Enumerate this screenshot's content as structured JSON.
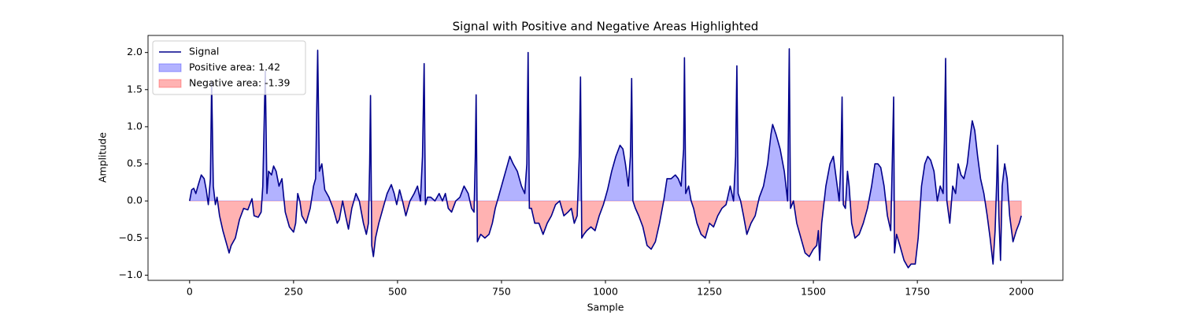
{
  "chart_data": {
    "type": "line",
    "title": "Signal with Positive and Negative Areas Highlighted",
    "xlabel": "Sample",
    "ylabel": "Amplitude",
    "xlim": [
      -100,
      2100
    ],
    "ylim": [
      -1.07,
      2.23
    ],
    "xticks": [
      0,
      250,
      500,
      750,
      1000,
      1250,
      1500,
      1750,
      2000
    ],
    "yticks": [
      {
        "value": -1,
        "label": "−1.0"
      },
      {
        "value": -0.5,
        "label": "−0.5"
      },
      {
        "value": 0,
        "label": "0.0"
      },
      {
        "value": 0.5,
        "label": "0.5"
      },
      {
        "value": 1,
        "label": "1.0"
      },
      {
        "value": 1.5,
        "label": "1.5"
      },
      {
        "value": 2,
        "label": "2.0"
      }
    ],
    "legend": "upper left",
    "x": [
      0,
      5,
      10,
      15,
      20,
      28,
      35,
      40,
      45,
      50,
      53,
      57,
      62,
      66,
      72,
      80,
      90,
      95,
      100,
      110,
      120,
      130,
      140,
      150,
      155,
      165,
      172,
      176,
      182,
      186,
      190,
      197,
      202,
      208,
      215,
      222,
      230,
      240,
      250,
      255,
      260,
      265,
      270,
      280,
      290,
      298,
      303,
      308,
      312,
      318,
      325,
      335,
      345,
      355,
      360,
      368,
      375,
      382,
      390,
      400,
      408,
      418,
      425,
      430,
      433,
      435,
      438,
      442,
      447,
      455,
      465,
      475,
      485,
      492,
      498,
      505,
      512,
      520,
      530,
      540,
      548,
      555,
      560,
      564,
      567,
      572,
      580,
      590,
      600,
      608,
      615,
      622,
      630,
      640,
      650,
      660,
      670,
      678,
      684,
      687,
      689,
      692,
      700,
      710,
      720,
      728,
      735,
      745,
      755,
      765,
      770,
      778,
      788,
      798,
      806,
      811,
      814,
      817,
      822,
      830,
      840,
      850,
      860,
      870,
      880,
      890,
      900,
      910,
      918,
      925,
      932,
      937,
      940,
      943,
      948,
      955,
      965,
      975,
      985,
      995,
      1005,
      1015,
      1025,
      1035,
      1042,
      1048,
      1055,
      1060,
      1063,
      1066,
      1072,
      1080,
      1090,
      1100,
      1110,
      1120,
      1130,
      1140,
      1148,
      1158,
      1168,
      1175,
      1182,
      1188,
      1190,
      1193,
      1200,
      1206,
      1212,
      1220,
      1230,
      1240,
      1250,
      1260,
      1270,
      1280,
      1290,
      1300,
      1308,
      1313,
      1316,
      1319,
      1325,
      1332,
      1340,
      1350,
      1360,
      1370,
      1380,
      1390,
      1398,
      1402,
      1410,
      1420,
      1430,
      1438,
      1442,
      1445,
      1452,
      1460,
      1470,
      1480,
      1490,
      1500,
      1508,
      1512,
      1515,
      1520,
      1530,
      1540,
      1548,
      1555,
      1562,
      1566,
      1569,
      1572,
      1577,
      1582,
      1586,
      1592,
      1600,
      1610,
      1620,
      1630,
      1640,
      1648,
      1655,
      1662,
      1670,
      1678,
      1686,
      1690,
      1693,
      1695,
      1700,
      1708,
      1718,
      1728,
      1735,
      1745,
      1752,
      1760,
      1768,
      1775,
      1782,
      1790,
      1798,
      1805,
      1812,
      1815,
      1818,
      1821,
      1828,
      1835,
      1842,
      1848,
      1855,
      1862,
      1870,
      1878,
      1882,
      1888,
      1895,
      1902,
      1910,
      1918,
      1925,
      1932,
      1937,
      1941,
      1943,
      1946,
      1950,
      1954,
      1960,
      1966,
      1972,
      1980,
      1988,
      1995,
      2000
    ],
    "series": [
      {
        "name": "Signal",
        "color": "#00008b",
        "values": [
          0.0,
          0.15,
          0.17,
          0.1,
          0.2,
          0.35,
          0.3,
          0.15,
          -0.05,
          0.3,
          1.6,
          0.2,
          -0.05,
          0.05,
          -0.2,
          -0.4,
          -0.6,
          -0.7,
          -0.6,
          -0.5,
          -0.25,
          -0.1,
          -0.12,
          0.03,
          -0.2,
          -0.22,
          -0.15,
          0.2,
          1.75,
          0.1,
          0.4,
          0.35,
          0.47,
          0.4,
          0.2,
          0.3,
          -0.15,
          -0.35,
          -0.42,
          -0.3,
          0.1,
          0.0,
          -0.2,
          -0.3,
          -0.1,
          0.2,
          0.3,
          2.03,
          0.4,
          0.5,
          0.15,
          0.05,
          -0.1,
          -0.3,
          -0.25,
          0.0,
          -0.2,
          -0.38,
          -0.1,
          0.1,
          0.0,
          -0.3,
          -0.45,
          -0.3,
          0.5,
          1.42,
          -0.6,
          -0.75,
          -0.5,
          -0.3,
          -0.1,
          0.1,
          0.22,
          0.1,
          -0.05,
          0.15,
          0.0,
          -0.2,
          0.0,
          0.1,
          0.2,
          0.0,
          0.6,
          1.85,
          -0.05,
          0.05,
          0.05,
          0.0,
          0.1,
          0.0,
          0.1,
          -0.1,
          -0.15,
          0.0,
          0.05,
          0.2,
          0.1,
          -0.1,
          -0.15,
          0.6,
          1.43,
          -0.55,
          -0.45,
          -0.5,
          -0.45,
          -0.3,
          -0.1,
          0.1,
          0.3,
          0.5,
          0.6,
          0.5,
          0.4,
          0.2,
          0.1,
          0.5,
          2.0,
          -0.1,
          -0.1,
          -0.3,
          -0.3,
          -0.45,
          -0.3,
          -0.2,
          -0.05,
          0.0,
          -0.2,
          -0.15,
          -0.1,
          -0.3,
          -0.2,
          0.6,
          1.67,
          -0.5,
          -0.45,
          -0.4,
          -0.35,
          -0.4,
          -0.2,
          -0.05,
          0.15,
          0.4,
          0.6,
          0.75,
          0.7,
          0.5,
          0.2,
          0.6,
          1.65,
          0.0,
          -0.1,
          -0.2,
          -0.35,
          -0.6,
          -0.65,
          -0.55,
          -0.3,
          0.0,
          0.3,
          0.3,
          0.35,
          0.3,
          0.2,
          0.7,
          1.93,
          0.1,
          0.2,
          0.0,
          -0.1,
          -0.3,
          -0.45,
          -0.5,
          -0.3,
          -0.35,
          -0.2,
          -0.1,
          -0.05,
          0.2,
          0.0,
          0.6,
          1.82,
          0.1,
          0.0,
          -0.2,
          -0.45,
          -0.3,
          -0.2,
          0.05,
          0.2,
          0.5,
          0.9,
          1.03,
          0.9,
          0.7,
          0.4,
          0.0,
          2.05,
          -0.1,
          0.0,
          -0.3,
          -0.5,
          -0.7,
          -0.75,
          -0.65,
          -0.6,
          -0.4,
          -0.8,
          -0.3,
          0.2,
          0.5,
          0.6,
          0.3,
          0.0,
          0.5,
          1.4,
          -0.05,
          -0.1,
          0.4,
          0.2,
          -0.3,
          -0.5,
          -0.45,
          -0.3,
          -0.1,
          0.2,
          0.5,
          0.5,
          0.45,
          0.2,
          -0.2,
          -0.4,
          0.6,
          1.4,
          -0.7,
          -0.45,
          -0.6,
          -0.8,
          -0.9,
          -0.85,
          -0.85,
          -0.5,
          0.2,
          0.5,
          0.6,
          0.55,
          0.4,
          0.0,
          0.2,
          0.1,
          0.8,
          1.92,
          0.0,
          -0.3,
          0.2,
          0.1,
          0.5,
          0.35,
          0.3,
          0.5,
          0.9,
          1.08,
          0.95,
          0.6,
          0.3,
          0.1,
          -0.2,
          -0.5,
          -0.85,
          -0.4,
          0.3,
          0.75,
          -0.2,
          -0.8,
          0.2,
          0.5,
          0.3,
          -0.2,
          -0.55,
          -0.4,
          -0.3,
          -0.2
        ]
      }
    ],
    "fills": [
      {
        "name": "Positive area: 1.42",
        "color": "blue"
      },
      {
        "name": "Negative area: -1.39",
        "color": "red"
      }
    ]
  }
}
